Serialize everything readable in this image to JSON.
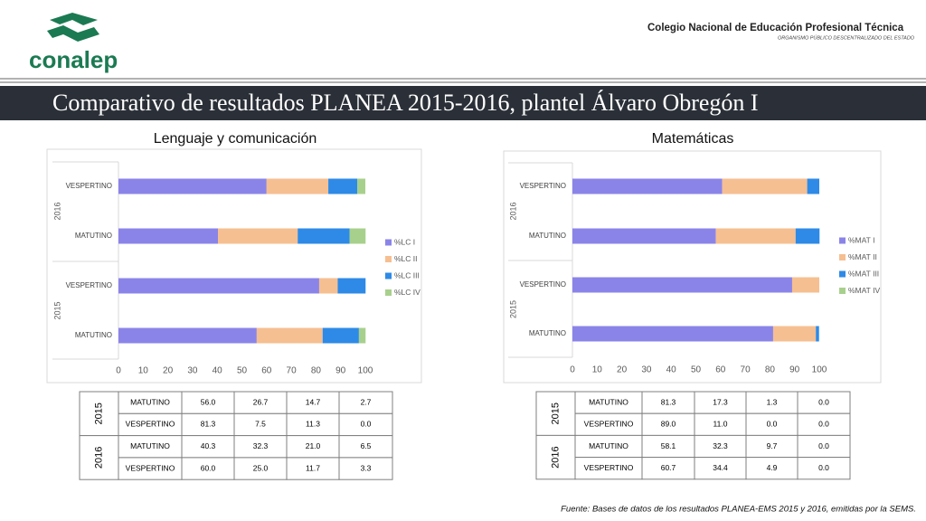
{
  "header": {
    "logo": "conalep",
    "org": "Colegio Nacional de Educación Profesional Técnica",
    "suborg": "ORGANISMO PÚBLICO DESCENTRALIZADO DEL ESTADO",
    "title": "Comparativo de resultados PLANEA 2015-2016, plantel Álvaro Obregón I"
  },
  "chart_data": [
    {
      "type": "bar",
      "orientation": "horizontal",
      "stacked": true,
      "title": "Lenguaje y comunicación",
      "groups": [
        "2015",
        "2016"
      ],
      "categories": [
        "MATUTINO",
        "VESPERTINO",
        "MATUTINO",
        "VESPERTINO"
      ],
      "series": [
        {
          "name": "%LC I",
          "color": "#8b84e8",
          "values": [
            56.0,
            81.3,
            40.3,
            60.0
          ]
        },
        {
          "name": "%LC II",
          "color": "#f6bf91",
          "values": [
            26.7,
            7.5,
            32.3,
            25.0
          ]
        },
        {
          "name": "%LC III",
          "color": "#2e8ae6",
          "values": [
            14.7,
            11.3,
            21.0,
            11.7
          ]
        },
        {
          "name": "%LC IV",
          "color": "#a8d08d",
          "values": [
            2.7,
            0.0,
            6.5,
            3.3
          ]
        }
      ],
      "xlim": [
        0,
        100
      ],
      "xticks": [
        0,
        10,
        20,
        30,
        40,
        50,
        60,
        70,
        80,
        90,
        100
      ],
      "grid": false,
      "legend": "right"
    },
    {
      "type": "bar",
      "orientation": "horizontal",
      "stacked": true,
      "title": "Matemáticas",
      "groups": [
        "2015",
        "2016"
      ],
      "categories": [
        "MATUTINO",
        "VESPERTINO",
        "MATUTINO",
        "VESPERTINO"
      ],
      "series": [
        {
          "name": "%MAT I",
          "color": "#8b84e8",
          "values": [
            81.3,
            89.0,
            58.1,
            60.7
          ]
        },
        {
          "name": "%MAT II",
          "color": "#f6bf91",
          "values": [
            17.3,
            11.0,
            32.3,
            34.4
          ]
        },
        {
          "name": "%MAT III",
          "color": "#2e8ae6",
          "values": [
            1.3,
            0.0,
            9.7,
            4.9
          ]
        },
        {
          "name": "%MAT IV",
          "color": "#a8d08d",
          "values": [
            0.0,
            0.0,
            0.0,
            0.0
          ]
        }
      ],
      "xlim": [
        0,
        100
      ],
      "xticks": [
        0,
        10,
        20,
        30,
        40,
        50,
        60,
        70,
        80,
        90,
        100
      ],
      "grid": false,
      "legend": "right"
    }
  ],
  "tables": [
    {
      "groups": [
        {
          "year": "2015",
          "rows": [
            [
              "MATUTINO",
              "56.0",
              "26.7",
              "14.7",
              "2.7"
            ],
            [
              "VESPERTINO",
              "81.3",
              "7.5",
              "11.3",
              "0.0"
            ]
          ]
        },
        {
          "year": "2016",
          "rows": [
            [
              "MATUTINO",
              "40.3",
              "32.3",
              "21.0",
              "6.5"
            ],
            [
              "VESPERTINO",
              "60.0",
              "25.0",
              "11.7",
              "3.3"
            ]
          ]
        }
      ]
    },
    {
      "groups": [
        {
          "year": "2015",
          "rows": [
            [
              "MATUTINO",
              "81.3",
              "17.3",
              "1.3",
              "0.0"
            ],
            [
              "VESPERTINO",
              "89.0",
              "11.0",
              "0.0",
              "0.0"
            ]
          ]
        },
        {
          "year": "2016",
          "rows": [
            [
              "MATUTINO",
              "58.1",
              "32.3",
              "9.7",
              "0.0"
            ],
            [
              "VESPERTINO",
              "60.7",
              "34.4",
              "4.9",
              "0.0"
            ]
          ]
        }
      ]
    }
  ],
  "footer": "Fuente: Bases de datos de los resultados PLANEA-EMS 2015 y 2016, emitidas por la SEMS."
}
